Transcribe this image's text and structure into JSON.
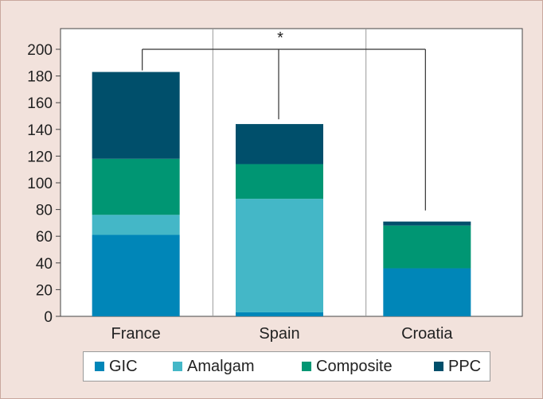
{
  "chart_data": {
    "type": "bar",
    "stacked": true,
    "categories": [
      "France",
      "Spain",
      "Croatia"
    ],
    "series": [
      {
        "name": "GIC",
        "color": "#0086b8",
        "values": [
          61,
          3,
          36
        ]
      },
      {
        "name": "Amalgam",
        "color": "#44b7c7",
        "values": [
          15,
          85,
          0
        ]
      },
      {
        "name": "Composite",
        "color": "#009673",
        "values": [
          42,
          26,
          32
        ]
      },
      {
        "name": "PPC",
        "color": "#004f6b",
        "values": [
          65,
          30,
          3
        ]
      }
    ],
    "ylim": [
      0,
      200
    ],
    "yticks": [
      0,
      20,
      40,
      60,
      80,
      100,
      120,
      140,
      160,
      180,
      200
    ],
    "legend_position": "bottom",
    "significance": {
      "marker": "*",
      "from": "France",
      "to": "Croatia",
      "via": "Spain"
    }
  }
}
